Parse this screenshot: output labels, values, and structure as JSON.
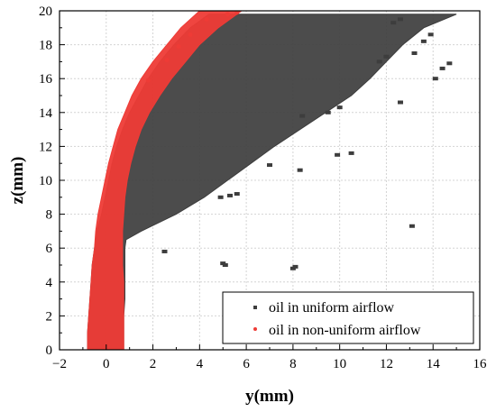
{
  "chart_data": {
    "type": "scatter",
    "title": "",
    "xlabel": "y(mm)",
    "ylabel": "z(mm)",
    "xlim": [
      -2,
      16
    ],
    "ylim": [
      0,
      20
    ],
    "xticks": [
      -2,
      0,
      2,
      4,
      6,
      8,
      10,
      12,
      14,
      16
    ],
    "yticks": [
      0,
      2,
      4,
      6,
      8,
      10,
      12,
      14,
      16,
      18,
      20
    ],
    "grid": true,
    "legend_position": "bottom-right",
    "series": [
      {
        "name": "oil in uniform airflow",
        "color": "#3d3d3d",
        "marker": "square",
        "band": {
          "z": [
            0,
            1,
            2,
            3,
            4,
            5,
            6,
            6.5,
            7,
            8,
            9,
            10,
            11,
            12,
            13,
            14,
            15,
            16,
            17,
            18,
            19,
            19.8
          ],
          "y_left": [
            -0.8,
            -0.8,
            -0.75,
            -0.7,
            -0.65,
            -0.6,
            -0.5,
            -0.45,
            -0.4,
            -0.2,
            -0.05,
            0.1,
            0.25,
            0.45,
            0.7,
            1.0,
            1.4,
            1.8,
            2.3,
            2.9,
            3.6,
            4.4
          ],
          "y_right": [
            0.75,
            0.75,
            0.75,
            0.8,
            0.8,
            0.8,
            0.8,
            0.85,
            1.5,
            3.0,
            4.2,
            5.2,
            6.2,
            7.2,
            8.3,
            9.4,
            10.5,
            11.3,
            12.0,
            12.7,
            13.6,
            15.0
          ]
        },
        "clusters": [
          {
            "y": 5.0,
            "z": 5.1
          },
          {
            "y": 5.1,
            "z": 5.0
          },
          {
            "y": 8.0,
            "z": 4.8
          },
          {
            "y": 8.1,
            "z": 4.9
          },
          {
            "y": 4.9,
            "z": 9.0
          },
          {
            "y": 5.3,
            "z": 9.1
          },
          {
            "y": 5.6,
            "z": 9.2
          },
          {
            "y": 2.5,
            "z": 5.8
          },
          {
            "y": 7.0,
            "z": 10.9
          },
          {
            "y": 8.3,
            "z": 10.6
          },
          {
            "y": 9.9,
            "z": 11.5
          },
          {
            "y": 10.5,
            "z": 11.6
          },
          {
            "y": 13.1,
            "z": 7.3
          },
          {
            "y": 12.6,
            "z": 14.6
          },
          {
            "y": 14.1,
            "z": 16.0
          },
          {
            "y": 14.4,
            "z": 16.6
          },
          {
            "y": 14.7,
            "z": 16.9
          },
          {
            "y": 13.6,
            "z": 18.2
          },
          {
            "y": 13.9,
            "z": 18.6
          },
          {
            "y": 13.2,
            "z": 17.5
          },
          {
            "y": 12.0,
            "z": 17.3
          },
          {
            "y": 11.7,
            "z": 17.0
          },
          {
            "y": 8.4,
            "z": 13.8
          },
          {
            "y": 10.0,
            "z": 14.3
          },
          {
            "y": 9.5,
            "z": 14.0
          },
          {
            "y": 12.3,
            "z": 19.3
          },
          {
            "y": 12.6,
            "z": 19.5
          }
        ]
      },
      {
        "name": "oil in non-uniform airflow",
        "color": "#ee3b36",
        "marker": "dot",
        "band": {
          "z": [
            0,
            1,
            2,
            3,
            4,
            5,
            6,
            7,
            8,
            9,
            10,
            11,
            12,
            13,
            14,
            15,
            16,
            17,
            18,
            19,
            20
          ],
          "y_left": [
            -0.8,
            -0.8,
            -0.75,
            -0.7,
            -0.65,
            -0.6,
            -0.5,
            -0.45,
            -0.35,
            -0.2,
            -0.05,
            0.1,
            0.3,
            0.5,
            0.8,
            1.1,
            1.5,
            2.0,
            2.6,
            3.2,
            4.0
          ],
          "y_right": [
            0.75,
            0.75,
            0.75,
            0.75,
            0.75,
            0.7,
            0.7,
            0.7,
            0.75,
            0.8,
            0.9,
            1.05,
            1.25,
            1.5,
            1.85,
            2.3,
            2.8,
            3.4,
            4.0,
            4.8,
            5.8
          ]
        },
        "clusters": [
          {
            "y": 5.2,
            "z": 19.8
          },
          {
            "y": 5.6,
            "z": 19.9
          },
          {
            "y": 4.3,
            "z": 19.5
          },
          {
            "y": 3.6,
            "z": 18.6
          },
          {
            "y": 3.1,
            "z": 17.9
          },
          {
            "y": 2.6,
            "z": 17.1
          },
          {
            "y": 1.8,
            "z": 15.9
          }
        ]
      }
    ]
  }
}
